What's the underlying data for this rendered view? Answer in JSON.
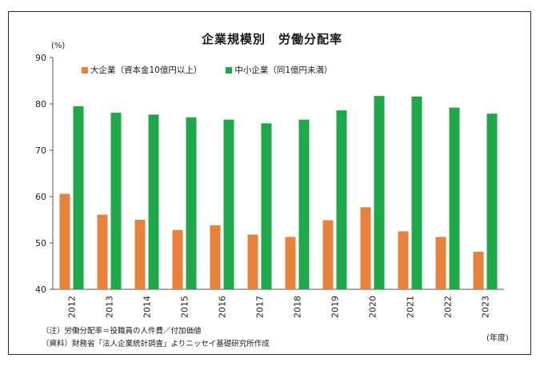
{
  "chart_data": {
    "type": "bar",
    "title": "企業規模別　労働分配率",
    "ylabel": "(%)",
    "xlabel": "(年度)",
    "ylim": [
      40,
      90
    ],
    "yticks": [
      40,
      50,
      60,
      70,
      80,
      90
    ],
    "categories": [
      "2012",
      "2013",
      "2014",
      "2015",
      "2016",
      "2017",
      "2018",
      "2019",
      "2020",
      "2021",
      "2022",
      "2023"
    ],
    "series": [
      {
        "name": "大企業（資本金10億円以上）",
        "color": "#E8823A",
        "values": [
          60.6,
          56.1,
          55.0,
          52.8,
          53.8,
          51.8,
          51.3,
          54.9,
          57.7,
          52.5,
          51.3,
          48.1
        ]
      },
      {
        "name": "中小企業（同1億円未満）",
        "color": "#1FA84A",
        "values": [
          79.5,
          78.1,
          77.7,
          77.1,
          76.6,
          75.8,
          76.6,
          78.6,
          81.7,
          81.6,
          79.2,
          77.9
        ]
      }
    ],
    "grid": false,
    "legend_position": "top-left"
  },
  "notes": [
    "（注）労働分配率＝役職員の人件費／付加価値",
    "（資料）財務省「法人企業統計調査」よりニッセイ基礎研究所作成"
  ]
}
